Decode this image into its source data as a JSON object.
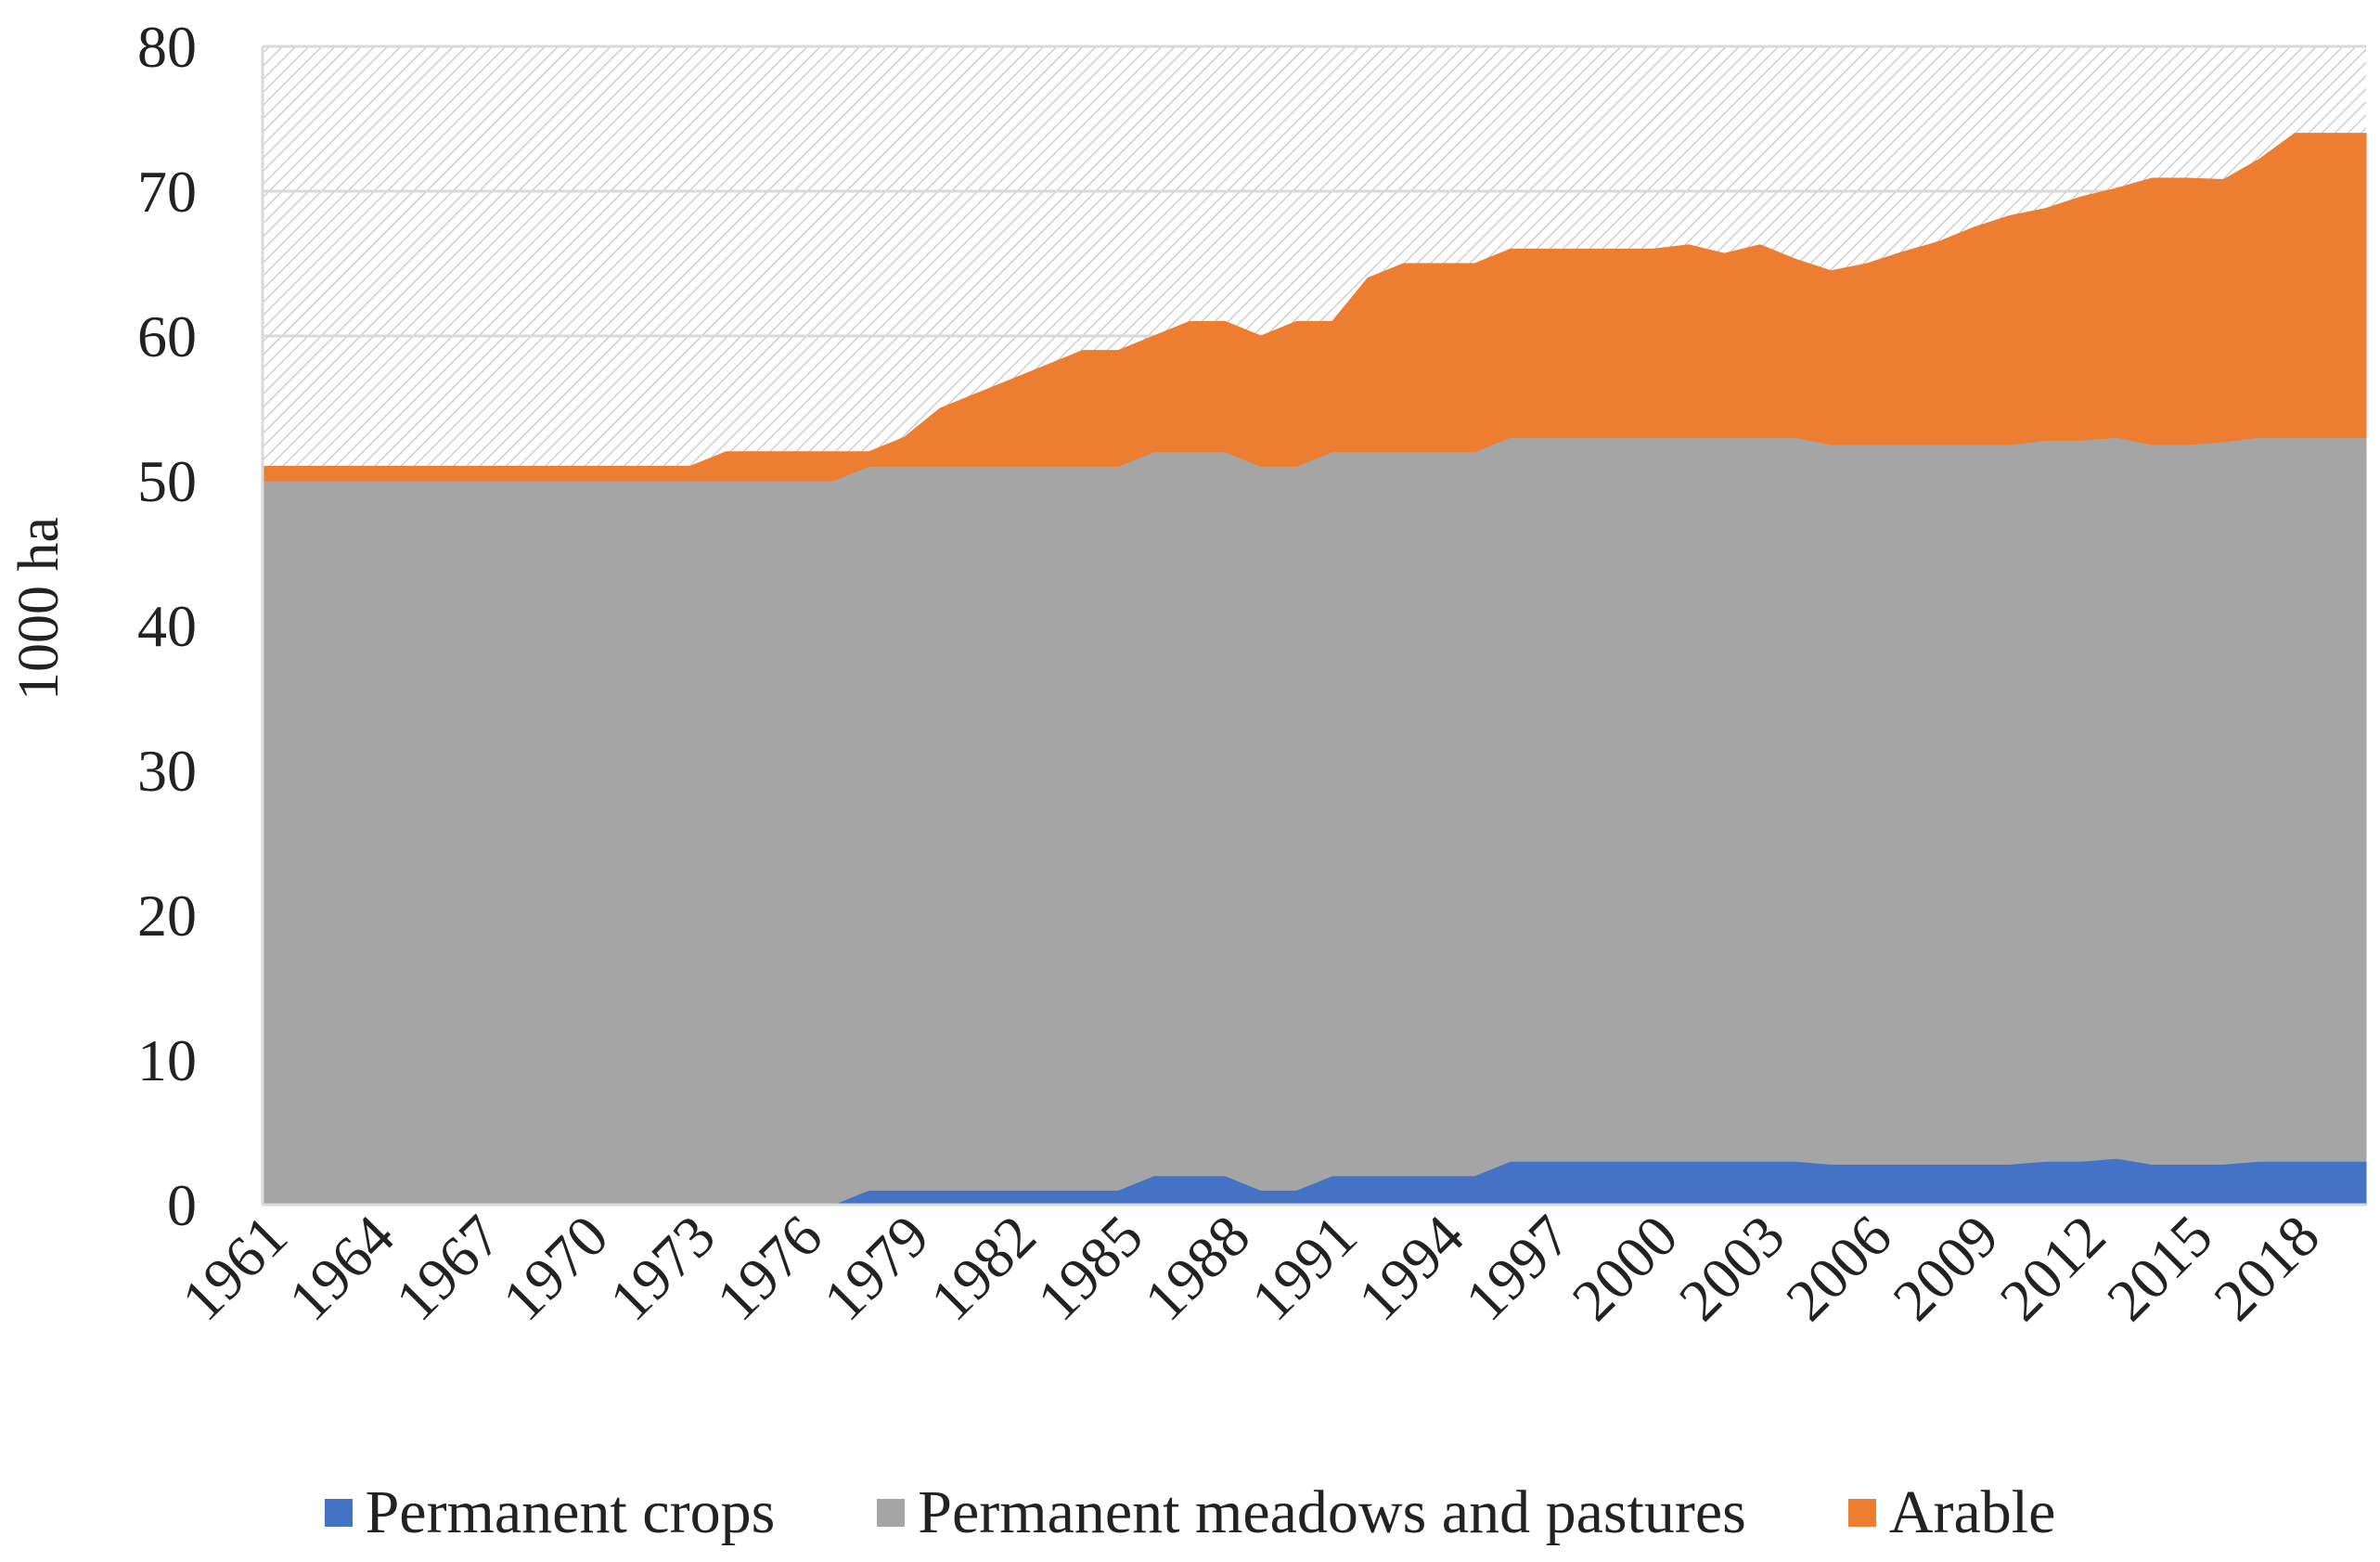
{
  "chart_data": {
    "type": "area",
    "stacked": true,
    "title": "",
    "xlabel": "",
    "ylabel": "1000 ha",
    "ylim": [
      0,
      80
    ],
    "yticks": [
      0,
      10,
      20,
      30,
      40,
      50,
      60,
      70,
      80
    ],
    "x_start": 1961,
    "x_end": 2020,
    "xtick_labels": [
      "1961",
      "1964",
      "1967",
      "1970",
      "1973",
      "1976",
      "1979",
      "1982",
      "1985",
      "1988",
      "1991",
      "1994",
      "1997",
      "2000",
      "2003",
      "2006",
      "2009",
      "2012",
      "2015",
      "2018"
    ],
    "grid": true,
    "legend_position": "bottom",
    "background_note": "hatched plot area",
    "series": [
      {
        "name": "Permanent crops",
        "color": "#4472C4",
        "values": [
          0,
          0,
          0,
          0,
          0,
          0,
          0,
          0,
          0,
          0,
          0,
          0,
          0,
          0,
          0,
          0,
          0,
          1,
          1,
          1,
          1,
          1,
          1,
          1,
          1,
          2,
          2,
          2,
          1,
          1,
          2,
          2,
          2,
          2,
          2,
          3,
          3,
          3,
          3,
          3,
          3,
          3,
          3,
          3,
          2.8,
          2.8,
          2.8,
          2.8,
          2.8,
          2.8,
          3,
          3,
          3.2,
          2.8,
          2.8,
          2.8,
          3,
          3,
          3,
          3
        ]
      },
      {
        "name": "Permanent meadows and pastures",
        "color": "#A5A5A5",
        "values": [
          50,
          50,
          50,
          50,
          50,
          50,
          50,
          50,
          50,
          50,
          50,
          50,
          50,
          50,
          50,
          50,
          50,
          50,
          50,
          50,
          50,
          50,
          50,
          50,
          50,
          50,
          50,
          50,
          50,
          50,
          50,
          50,
          50,
          50,
          50,
          50,
          50,
          50,
          50,
          50,
          50,
          50,
          50,
          50,
          49.7,
          49.7,
          49.7,
          49.7,
          49.7,
          49.7,
          49.8,
          49.8,
          49.8,
          49.7,
          49.7,
          49.9,
          50,
          50,
          50,
          50
        ]
      },
      {
        "name": "Arable",
        "color": "#ED7D31",
        "values": [
          1,
          1,
          1,
          1,
          1,
          1,
          1,
          1,
          1,
          1,
          1,
          1,
          1,
          2,
          2,
          2,
          2,
          1,
          2,
          4,
          5,
          6,
          7,
          8,
          8,
          8,
          9,
          9,
          9,
          10,
          9,
          12,
          13,
          13,
          13,
          13,
          13,
          13,
          13,
          13,
          13.3,
          12.7,
          13.3,
          12.3,
          12,
          12.5,
          13.3,
          14,
          15,
          15.8,
          16,
          16.8,
          17.2,
          18.4,
          18.4,
          18.1,
          19.2,
          21,
          21,
          21
        ]
      }
    ]
  }
}
